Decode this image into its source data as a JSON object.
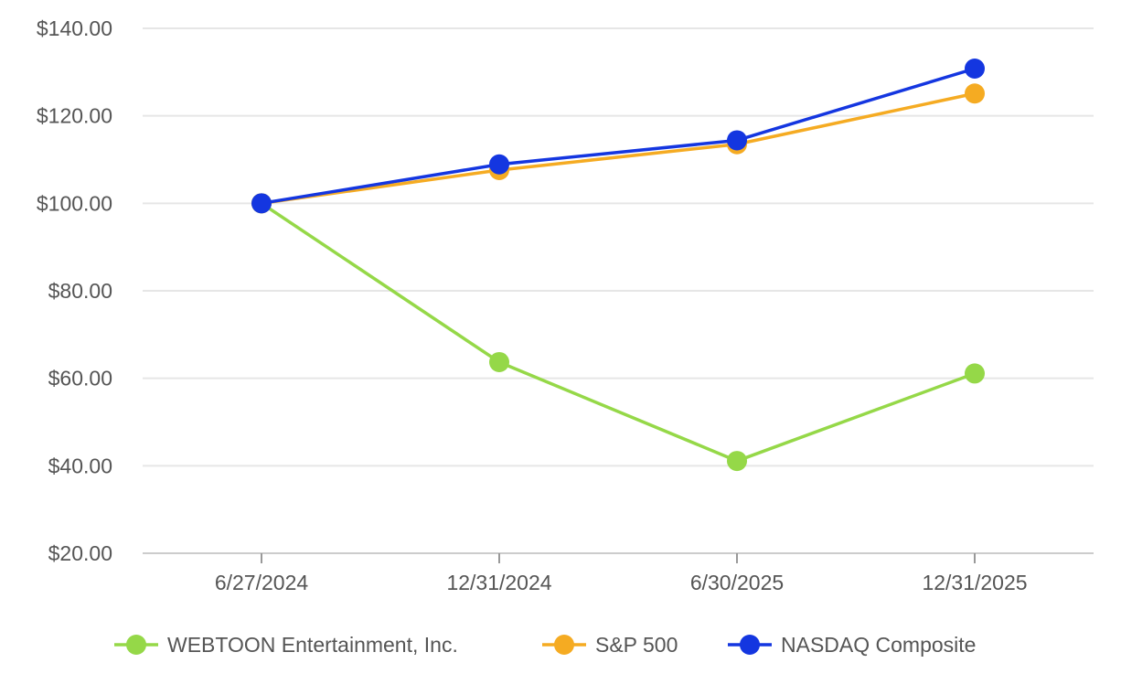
{
  "chart_data": {
    "type": "line",
    "title": "",
    "xlabel": "",
    "ylabel": "",
    "categories": [
      "6/27/2024",
      "12/31/2024",
      "6/30/2025",
      "12/31/2025"
    ],
    "y_ticks": [
      "$20.00",
      "$40.00",
      "$60.00",
      "$80.00",
      "$100.00",
      "$120.00",
      "$140.00"
    ],
    "ylim": [
      20,
      140
    ],
    "grid": "horizontal",
    "legend_position": "bottom",
    "series": [
      {
        "name": "WEBTOON Entertainment, Inc.",
        "color": "#95d848",
        "values": [
          100,
          63.7,
          41.1,
          61.1
        ]
      },
      {
        "name": "S&P 500",
        "color": "#f5ab22",
        "values": [
          100,
          107.6,
          113.5,
          125.1
        ]
      },
      {
        "name": "NASDAQ Composite",
        "color": "#1436e0",
        "values": [
          100,
          108.9,
          114.4,
          130.8
        ]
      }
    ]
  }
}
